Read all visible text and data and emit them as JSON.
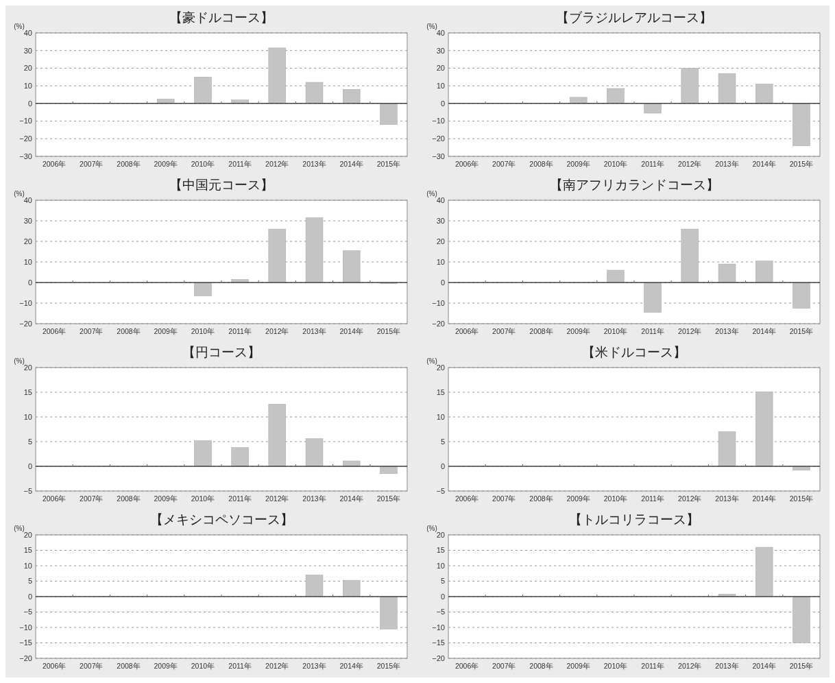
{
  "chart_data": [
    {
      "type": "bar",
      "title": "【豪ドルコース】",
      "ylabel": "(%)",
      "categories": [
        "2006年",
        "2007年",
        "2008年",
        "2009年",
        "2010年",
        "2011年",
        "2012年",
        "2013年",
        "2014年",
        "2015年"
      ],
      "series": [
        {
          "color": "#c4c4c4",
          "values": [
            null,
            null,
            null,
            2.5,
            15,
            2,
            31.5,
            12,
            8,
            -12
          ]
        }
      ],
      "ylim": [
        -30,
        40
      ],
      "yticks": [
        -30,
        -20,
        -10,
        0,
        10,
        20,
        30,
        40
      ],
      "grid": "y"
    },
    {
      "type": "bar",
      "title": "【ブラジルレアルコース】",
      "ylabel": "(%)",
      "categories": [
        "2006年",
        "2007年",
        "2008年",
        "2009年",
        "2010年",
        "2011年",
        "2012年",
        "2013年",
        "2014年",
        "2015年"
      ],
      "series": [
        {
          "color": "#c4c4c4",
          "values": [
            null,
            null,
            null,
            3.5,
            8.5,
            -5.5,
            20,
            17,
            11,
            -24
          ]
        }
      ],
      "ylim": [
        -30,
        40
      ],
      "yticks": [
        -30,
        -20,
        -10,
        0,
        10,
        20,
        30,
        40
      ],
      "grid": "y"
    },
    {
      "type": "bar",
      "title": "【中国元コース】",
      "ylabel": "(%)",
      "categories": [
        "2006年",
        "2007年",
        "2008年",
        "2009年",
        "2010年",
        "2011年",
        "2012年",
        "2013年",
        "2014年",
        "2015年"
      ],
      "series": [
        {
          "color": "#c4c4c4",
          "values": [
            null,
            null,
            null,
            null,
            -6.5,
            1.5,
            26,
            31.5,
            15.5,
            -0.5
          ]
        }
      ],
      "ylim": [
        -20,
        40
      ],
      "yticks": [
        -20,
        -10,
        0,
        10,
        20,
        30,
        40
      ],
      "grid": "y"
    },
    {
      "type": "bar",
      "title": "【南アフリカランドコース】",
      "ylabel": "(%)",
      "categories": [
        "2006年",
        "2007年",
        "2008年",
        "2009年",
        "2010年",
        "2011年",
        "2012年",
        "2013年",
        "2014年",
        "2015年"
      ],
      "series": [
        {
          "color": "#c4c4c4",
          "values": [
            null,
            null,
            null,
            null,
            6,
            -14.5,
            26,
            9,
            10.5,
            -12.5
          ]
        }
      ],
      "ylim": [
        -20,
        40
      ],
      "yticks": [
        -20,
        -10,
        0,
        10,
        20,
        30,
        40
      ],
      "grid": "y"
    },
    {
      "type": "bar",
      "title": "【円コース】",
      "ylabel": "(%)",
      "categories": [
        "2006年",
        "2007年",
        "2008年",
        "2009年",
        "2010年",
        "2011年",
        "2012年",
        "2013年",
        "2014年",
        "2015年"
      ],
      "series": [
        {
          "color": "#c4c4c4",
          "values": [
            null,
            null,
            null,
            null,
            5.2,
            3.8,
            12.6,
            5.6,
            1.1,
            -1.5
          ]
        }
      ],
      "ylim": [
        -5,
        20
      ],
      "yticks": [
        -5,
        0,
        5,
        10,
        15,
        20
      ],
      "grid": "y"
    },
    {
      "type": "bar",
      "title": "【米ドルコース】",
      "ylabel": "(%)",
      "categories": [
        "2006年",
        "2007年",
        "2008年",
        "2009年",
        "2010年",
        "2011年",
        "2012年",
        "2013年",
        "2014年",
        "2015年"
      ],
      "series": [
        {
          "color": "#c4c4c4",
          "values": [
            null,
            null,
            null,
            null,
            null,
            null,
            null,
            7,
            15.1,
            -0.8
          ]
        }
      ],
      "ylim": [
        -5,
        20
      ],
      "yticks": [
        -5,
        0,
        5,
        10,
        15,
        20
      ],
      "grid": "y"
    },
    {
      "type": "bar",
      "title": "【メキシコペソコース】",
      "ylabel": "(%)",
      "categories": [
        "2006年",
        "2007年",
        "2008年",
        "2009年",
        "2010年",
        "2011年",
        "2012年",
        "2013年",
        "2014年",
        "2015年"
      ],
      "series": [
        {
          "color": "#c4c4c4",
          "values": [
            null,
            null,
            null,
            null,
            null,
            null,
            null,
            7,
            5.3,
            -10.5
          ]
        }
      ],
      "ylim": [
        -20,
        20
      ],
      "yticks": [
        -20,
        -15,
        -10,
        -5,
        0,
        5,
        10,
        15,
        20
      ],
      "grid": "y"
    },
    {
      "type": "bar",
      "title": "【トルコリラコース】",
      "ylabel": "(%)",
      "categories": [
        "2006年",
        "2007年",
        "2008年",
        "2009年",
        "2010年",
        "2011年",
        "2012年",
        "2013年",
        "2014年",
        "2015年"
      ],
      "series": [
        {
          "color": "#c4c4c4",
          "values": [
            null,
            null,
            null,
            null,
            null,
            null,
            null,
            0.8,
            16,
            -15
          ]
        }
      ],
      "ylim": [
        -20,
        20
      ],
      "yticks": [
        -20,
        -15,
        -10,
        -5,
        0,
        5,
        10,
        15,
        20
      ],
      "grid": "y"
    }
  ]
}
